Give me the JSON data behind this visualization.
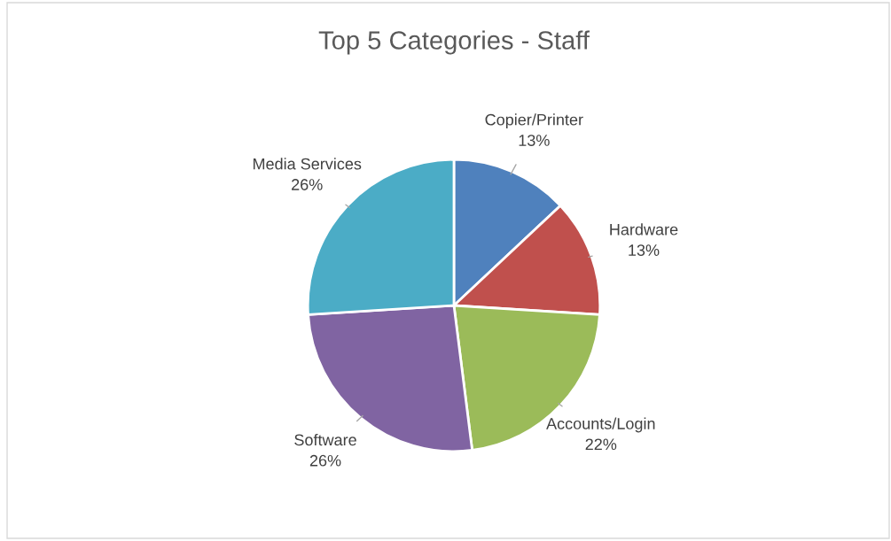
{
  "chart_data": {
    "type": "pie",
    "title": "Top 5 Categories - Staff",
    "categories": [
      "Copier/Printer",
      "Hardware",
      "Accounts/Login",
      "Software",
      "Media Services"
    ],
    "values": [
      13,
      13,
      22,
      26,
      26
    ],
    "colors": [
      "#4f81bd",
      "#c0504d",
      "#9bbb59",
      "#8064a2",
      "#4bacc6"
    ],
    "value_labels": [
      "13%",
      "13%",
      "22%",
      "26%",
      "26%"
    ]
  }
}
